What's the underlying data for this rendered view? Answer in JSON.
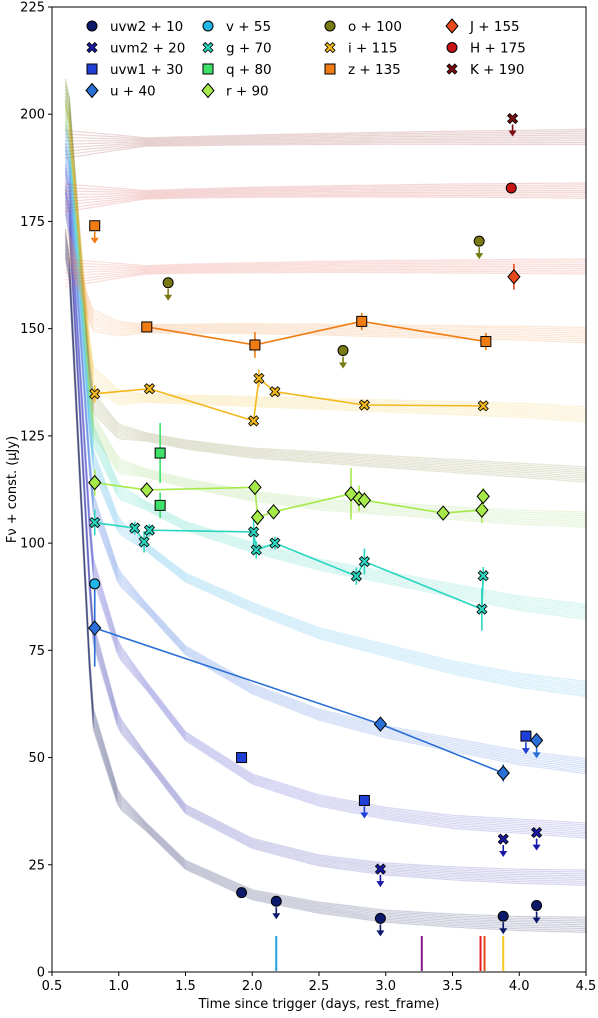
{
  "chart_data": {
    "type": "scatter",
    "title": "",
    "xlabel": "Time since trigger (days, rest_frame)",
    "ylabel": "Fν + const. (μJy)",
    "xlim": [
      0.5,
      4.5
    ],
    "ylim": [
      0,
      225
    ],
    "xticks": [
      "0.5",
      "1.0",
      "1.5",
      "2.0",
      "2.5",
      "3.0",
      "3.5",
      "4.0",
      "4.5"
    ],
    "yticks": [
      "0",
      "25",
      "50",
      "75",
      "100",
      "125",
      "150",
      "175",
      "200",
      "225"
    ],
    "grid": false,
    "legend_position": "top",
    "series": [
      {
        "name": "uvw2 + 10",
        "marker": "circle",
        "color": "#0d1a6b",
        "connect": false,
        "points": [
          [
            1.92,
            18.5
          ],
          [
            2.18,
            16.5
          ],
          [
            2.96,
            12.5
          ],
          [
            3.88,
            13.0
          ],
          [
            4.13,
            15.5
          ]
        ],
        "upper_limits": [
          false,
          true,
          true,
          true,
          true
        ]
      },
      {
        "name": "uvm2 + 20",
        "marker": "x",
        "color": "#1a1aa6",
        "connect": false,
        "points": [
          [
            2.96,
            24.0
          ],
          [
            3.88,
            31.0
          ],
          [
            4.13,
            32.5
          ]
        ],
        "upper_limits": [
          true,
          true,
          true
        ]
      },
      {
        "name": "uvw1 + 30",
        "marker": "square",
        "color": "#1f3fd6",
        "connect": false,
        "points": [
          [
            1.92,
            50.0
          ],
          [
            2.84,
            40.0
          ],
          [
            4.05,
            55.0
          ]
        ],
        "upper_limits": [
          false,
          true,
          true
        ]
      },
      {
        "name": "u + 40",
        "marker": "diamond",
        "color": "#2a6fd6",
        "connect": true,
        "points": [
          [
            0.82,
            80.2
          ],
          [
            2.96,
            57.8
          ],
          [
            3.88,
            46.4
          ],
          [
            4.13,
            54.0
          ]
        ],
        "errors": [
          9,
          1.2,
          2.0,
          0
        ],
        "upper_limits": [
          false,
          false,
          false,
          true
        ]
      },
      {
        "name": "v + 55",
        "marker": "circle",
        "color": "#22b6e8",
        "connect": false,
        "points": [
          [
            0.82,
            90.5
          ]
        ],
        "upper_limits": [
          false
        ]
      },
      {
        "name": "g + 70",
        "marker": "x",
        "color": "#2ad6c0",
        "connect": true,
        "points": [
          [
            0.82,
            104.8
          ],
          [
            1.12,
            103.5
          ],
          [
            1.19,
            100.3
          ],
          [
            1.23,
            103.0
          ],
          [
            2.01,
            102.6
          ],
          [
            2.03,
            98.4
          ],
          [
            2.17,
            100.0
          ],
          [
            2.78,
            92.3
          ],
          [
            2.84,
            95.7
          ],
          [
            3.72,
            84.6
          ],
          [
            3.73,
            92.4
          ]
        ],
        "errors": [
          3,
          1.5,
          2.5,
          1.5,
          3,
          2,
          1.5,
          2,
          3,
          5,
          2
        ]
      },
      {
        "name": "q + 80",
        "marker": "square",
        "color": "#3ee06a",
        "connect": false,
        "points": [
          [
            1.31,
            121.0
          ],
          [
            1.31,
            108.8
          ]
        ],
        "errors": [
          7,
          3
        ]
      },
      {
        "name": "r + 90",
        "marker": "diamond",
        "color": "#a6ea4a",
        "connect": true,
        "points": [
          [
            0.82,
            114.1
          ],
          [
            1.21,
            112.4
          ],
          [
            2.02,
            113.0
          ],
          [
            2.04,
            106.0
          ],
          [
            2.16,
            107.3
          ],
          [
            2.74,
            111.5
          ],
          [
            2.8,
            110.4
          ],
          [
            2.84,
            110.0
          ],
          [
            3.43,
            107.0
          ],
          [
            3.72,
            107.7
          ],
          [
            3.73,
            110.9
          ]
        ],
        "errors": [
          3,
          1,
          1,
          2,
          1,
          6,
          3,
          2,
          1,
          3,
          2
        ]
      },
      {
        "name": "o + 100",
        "marker": "circle",
        "color": "#7a7a14",
        "connect": false,
        "points": [
          [
            1.37,
            160.7
          ],
          [
            2.68,
            144.9
          ],
          [
            3.7,
            170.4
          ]
        ],
        "upper_limits": [
          true,
          true,
          true
        ]
      },
      {
        "name": "i + 115",
        "marker": "x",
        "color": "#f2b81c",
        "connect": true,
        "points": [
          [
            0.82,
            134.8
          ],
          [
            1.23,
            136.0
          ],
          [
            2.01,
            128.5
          ],
          [
            2.05,
            138.4
          ],
          [
            2.17,
            135.3
          ],
          [
            2.84,
            132.2
          ],
          [
            3.73,
            132.0
          ]
        ],
        "errors": [
          2,
          1,
          1,
          2,
          1,
          1,
          1
        ]
      },
      {
        "name": "z + 135",
        "marker": "square",
        "color": "#f07c14",
        "connect": true,
        "points": [
          [
            0.82,
            174.0
          ],
          [
            1.21,
            150.4
          ],
          [
            2.02,
            146.2
          ],
          [
            2.82,
            151.7
          ],
          [
            3.75,
            147.0
          ]
        ],
        "errors": [
          0,
          1,
          3,
          2,
          2
        ],
        "upper_limits": [
          true,
          false,
          false,
          false,
          false
        ]
      },
      {
        "name": "J + 155",
        "marker": "diamond",
        "color": "#e84a1c",
        "connect": false,
        "points": [
          [
            3.96,
            162.1
          ]
        ],
        "errors": [
          3
        ]
      },
      {
        "name": "H + 175",
        "marker": "circle",
        "color": "#c81414",
        "connect": false,
        "points": [
          [
            3.94,
            182.8
          ]
        ]
      },
      {
        "name": "K + 190",
        "marker": "x",
        "color": "#7a0c10",
        "connect": false,
        "points": [
          [
            3.95,
            199.0
          ]
        ],
        "upper_limits": [
          true
        ]
      }
    ],
    "model_bands": [
      {
        "color": "#1c2360",
        "values": [
          [
            0.62,
            170
          ],
          [
            0.8,
            60
          ],
          [
            1.0,
            40
          ],
          [
            1.5,
            25
          ],
          [
            2.0,
            18
          ],
          [
            2.5,
            15
          ],
          [
            3.0,
            13
          ],
          [
            3.5,
            12
          ],
          [
            4.0,
            11.3
          ],
          [
            4.5,
            11
          ]
        ]
      },
      {
        "color": "#4040b0",
        "values": [
          [
            0.62,
            180
          ],
          [
            0.8,
            80
          ],
          [
            1.0,
            58
          ],
          [
            1.5,
            38
          ],
          [
            2.0,
            30
          ],
          [
            2.5,
            26
          ],
          [
            3.0,
            24
          ],
          [
            3.5,
            23
          ],
          [
            4.0,
            22.3
          ],
          [
            4.5,
            22
          ]
        ]
      },
      {
        "color": "#5050cc",
        "values": [
          [
            0.62,
            185
          ],
          [
            0.8,
            95
          ],
          [
            1.0,
            75
          ],
          [
            1.5,
            55
          ],
          [
            2.0,
            45
          ],
          [
            2.5,
            40
          ],
          [
            3.0,
            37
          ],
          [
            3.5,
            35
          ],
          [
            4.0,
            34
          ],
          [
            4.5,
            33
          ]
        ]
      },
      {
        "color": "#4a7ae0",
        "values": [
          [
            0.62,
            190
          ],
          [
            0.8,
            110
          ],
          [
            1.0,
            92
          ],
          [
            1.5,
            75
          ],
          [
            2.0,
            66
          ],
          [
            2.5,
            60
          ],
          [
            3.0,
            56
          ],
          [
            3.5,
            53
          ],
          [
            4.0,
            50
          ],
          [
            4.5,
            48
          ]
        ]
      },
      {
        "color": "#4ab4ea",
        "values": [
          [
            0.62,
            195
          ],
          [
            0.8,
            120
          ],
          [
            1.0,
            104
          ],
          [
            1.5,
            92
          ],
          [
            2.0,
            85
          ],
          [
            2.5,
            79
          ],
          [
            3.0,
            75
          ],
          [
            3.5,
            71
          ],
          [
            4.0,
            68
          ],
          [
            4.5,
            66
          ]
        ]
      },
      {
        "color": "#4ad8c0",
        "values": [
          [
            0.62,
            200
          ],
          [
            0.8,
            126
          ],
          [
            1.0,
            112
          ],
          [
            1.5,
            104
          ],
          [
            2.0,
            99
          ],
          [
            2.5,
            95
          ],
          [
            3.0,
            92
          ],
          [
            3.5,
            89
          ],
          [
            4.0,
            86
          ],
          [
            4.5,
            84
          ]
        ]
      },
      {
        "color": "#9ad870",
        "values": [
          [
            0.62,
            205
          ],
          [
            0.8,
            128
          ],
          [
            1.0,
            118
          ],
          [
            1.5,
            114
          ],
          [
            2.0,
            111
          ],
          [
            2.5,
            109
          ],
          [
            3.0,
            108
          ],
          [
            3.5,
            107
          ],
          [
            4.0,
            106
          ],
          [
            4.5,
            105.5
          ]
        ]
      },
      {
        "color": "#8a8a48",
        "values": [
          [
            0.62,
            205
          ],
          [
            0.8,
            133
          ],
          [
            1.0,
            126
          ],
          [
            1.5,
            123
          ],
          [
            2.0,
            121
          ],
          [
            2.5,
            120
          ],
          [
            3.0,
            119
          ],
          [
            3.5,
            118
          ],
          [
            4.0,
            117
          ],
          [
            4.5,
            116
          ]
        ]
      },
      {
        "color": "#f0c84a",
        "values": [
          [
            0.62,
            200
          ],
          [
            0.8,
            139
          ],
          [
            1.0,
            134
          ],
          [
            1.5,
            133.5
          ],
          [
            2.0,
            133
          ],
          [
            2.5,
            132.5
          ],
          [
            3.0,
            132
          ],
          [
            3.5,
            131.5
          ],
          [
            4.0,
            131
          ],
          [
            4.5,
            130
          ]
        ]
      },
      {
        "color": "#f0964a",
        "values": [
          [
            0.62,
            170
          ],
          [
            0.8,
            152
          ],
          [
            1.0,
            150
          ],
          [
            1.5,
            150
          ],
          [
            2.0,
            150
          ],
          [
            2.5,
            149.8
          ],
          [
            3.0,
            149.5
          ],
          [
            3.5,
            149.2
          ],
          [
            4.0,
            149
          ],
          [
            4.5,
            148.5
          ]
        ]
      },
      {
        "color": "#e86a5a",
        "values": [
          [
            0.62,
            163
          ],
          [
            1.0,
            163.5
          ],
          [
            1.5,
            164
          ],
          [
            2.0,
            164.2
          ],
          [
            2.5,
            164.4
          ],
          [
            3.0,
            164.5
          ],
          [
            3.5,
            164.5
          ],
          [
            4.0,
            164.5
          ],
          [
            4.5,
            164.5
          ]
        ]
      },
      {
        "color": "#d84a4a",
        "values": [
          [
            0.62,
            180.5
          ],
          [
            1.0,
            181
          ],
          [
            1.5,
            181.5
          ],
          [
            2.0,
            181.8
          ],
          [
            2.5,
            182
          ],
          [
            3.0,
            182.1
          ],
          [
            3.5,
            182.2
          ],
          [
            4.0,
            182.2
          ],
          [
            4.5,
            182.2
          ]
        ]
      },
      {
        "color": "#a04040",
        "values": [
          [
            0.62,
            193
          ],
          [
            1.0,
            193.4
          ],
          [
            1.5,
            193.7
          ],
          [
            2.0,
            194
          ],
          [
            2.5,
            194.2
          ],
          [
            3.0,
            194.4
          ],
          [
            3.5,
            194.5
          ],
          [
            4.0,
            194.6
          ],
          [
            4.5,
            194.7
          ]
        ]
      }
    ],
    "epoch_markers": [
      {
        "x": 2.18,
        "color": "#22a0e0"
      },
      {
        "x": 3.27,
        "color": "#8a1a8a"
      },
      {
        "x": 3.71,
        "color": "#e81c1c"
      },
      {
        "x": 3.74,
        "color": "#e84a1c"
      },
      {
        "x": 3.88,
        "color": "#f2c81c"
      }
    ]
  }
}
